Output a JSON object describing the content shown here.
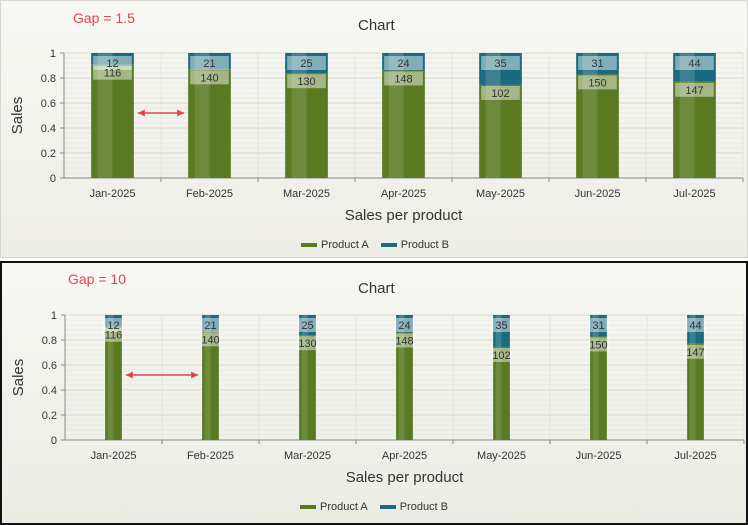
{
  "chart_data": [
    {
      "type": "bar",
      "stacked": true,
      "normalized": true,
      "annotation": "Gap = 1.5",
      "gap": 1.5,
      "title": "Chart",
      "xlabel": "Sales per product",
      "ylabel": "Sales",
      "ylim": [
        0,
        1
      ],
      "yticks": [
        "0",
        "0.2",
        "0.4",
        "0.6",
        "0.8",
        "1"
      ],
      "categories": [
        "Jan-2025",
        "Feb-2025",
        "Mar-2025",
        "Apr-2025",
        "May-2025",
        "Jun-2025",
        "Jul-2025"
      ],
      "series": [
        {
          "name": "Product A",
          "color": "#5a7a22",
          "values": [
            116,
            140,
            130,
            148,
            102,
            150,
            147
          ]
        },
        {
          "name": "Product B",
          "color": "#1b6b80",
          "values": [
            12,
            21,
            25,
            24,
            35,
            31,
            44
          ]
        }
      ],
      "legend": "bottom-center",
      "grid": true
    },
    {
      "type": "bar",
      "stacked": true,
      "normalized": true,
      "annotation": "Gap = 10",
      "gap": 10,
      "title": "Chart",
      "xlabel": "Sales per product",
      "ylabel": "Sales",
      "ylim": [
        0,
        1
      ],
      "yticks": [
        "0",
        "0.2",
        "0.4",
        "0.6",
        "0.8",
        "1"
      ],
      "categories": [
        "Jan-2025",
        "Feb-2025",
        "Mar-2025",
        "Apr-2025",
        "May-2025",
        "Jun-2025",
        "Jul-2025"
      ],
      "series": [
        {
          "name": "Product A",
          "color": "#5a7a22",
          "values": [
            116,
            140,
            130,
            148,
            102,
            150,
            147
          ]
        },
        {
          "name": "Product B",
          "color": "#1b6b80",
          "values": [
            12,
            21,
            25,
            24,
            35,
            31,
            44
          ]
        }
      ],
      "legend": "bottom-center",
      "grid": true
    }
  ]
}
